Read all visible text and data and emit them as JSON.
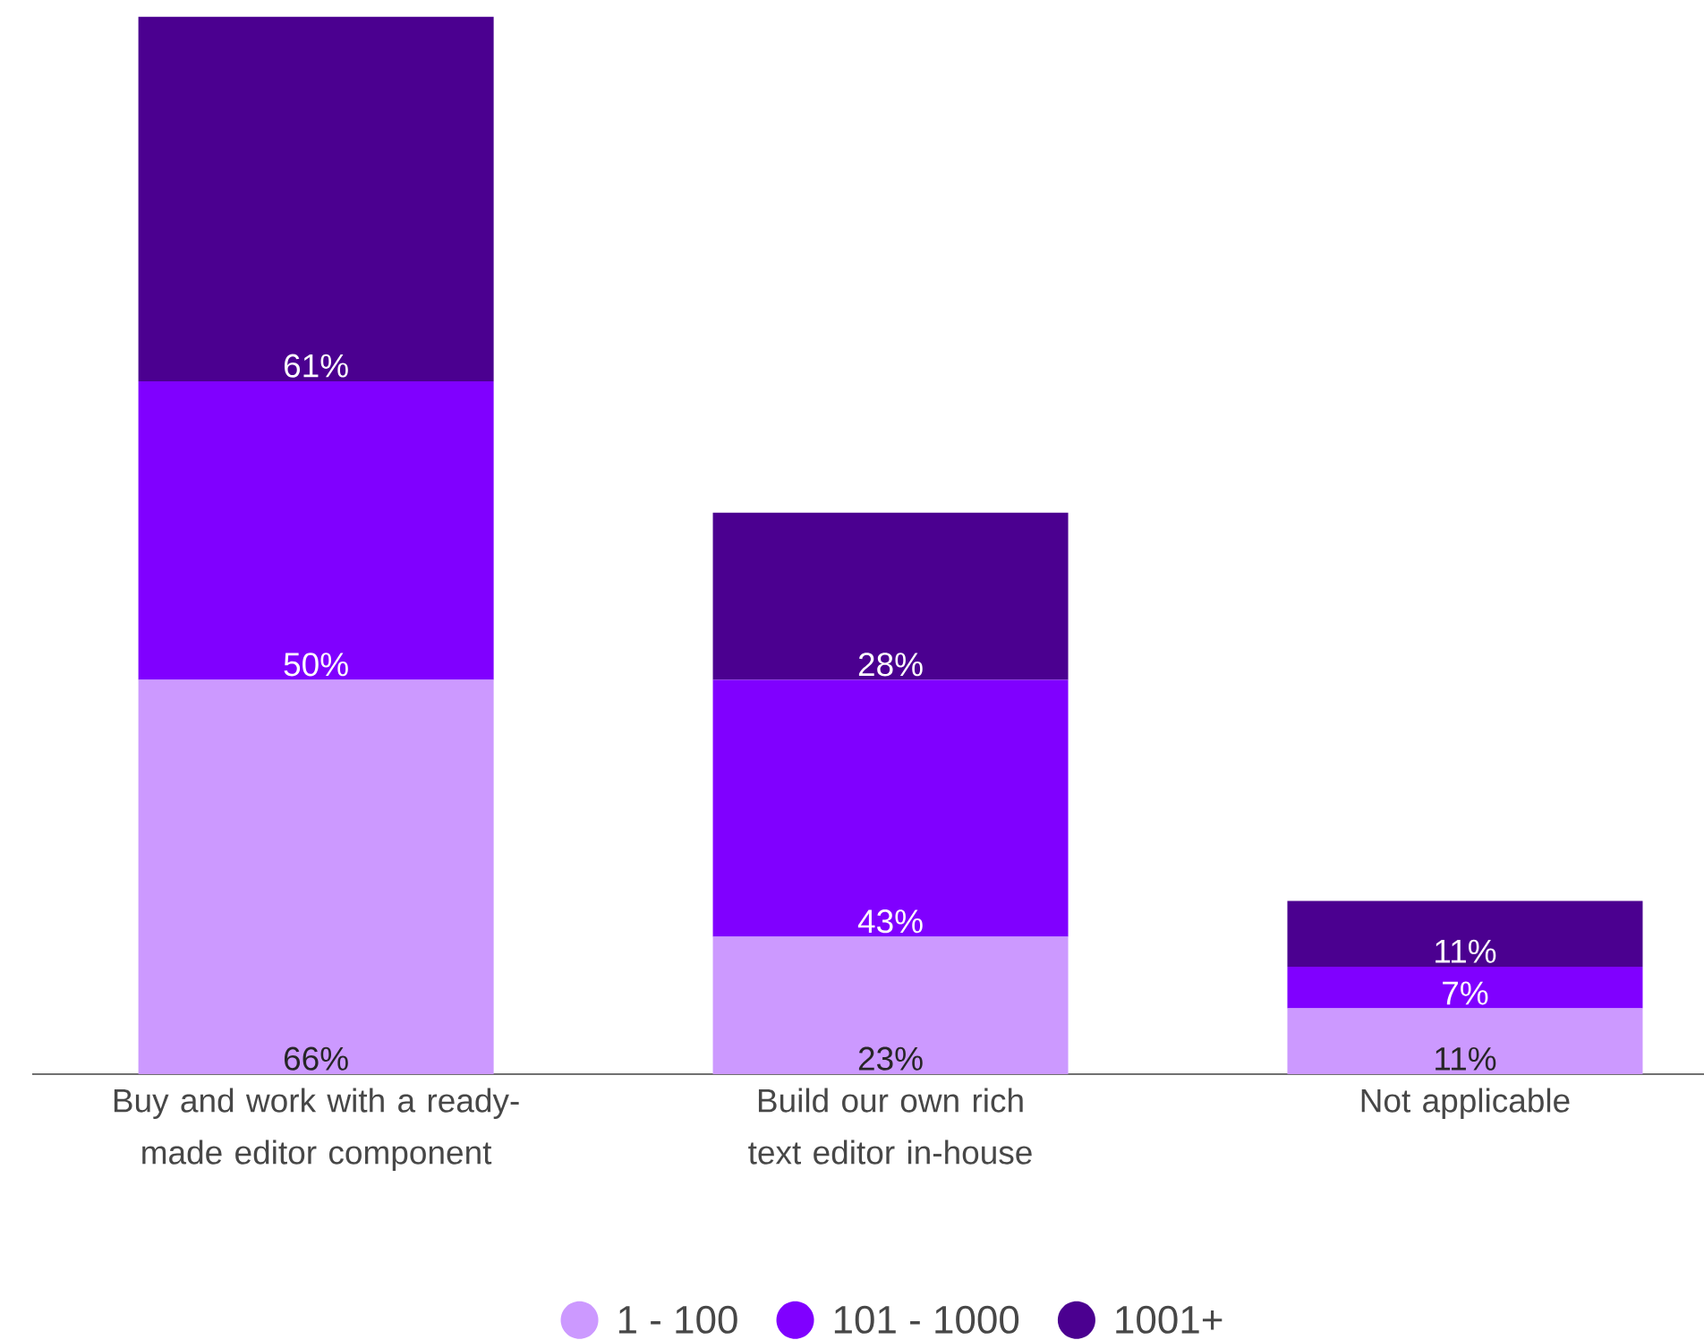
{
  "chart_data": {
    "type": "bar",
    "stacked": true,
    "legend": "bottom",
    "categories": [
      "Buy and work with a ready-made editor component",
      "Build our own rich text editor in-house",
      "Not applicable"
    ],
    "series": [
      {
        "name": "1 - 100",
        "color": "#cc99ff",
        "values": [
          66,
          23,
          11
        ],
        "value_labels": [
          "66%",
          "23%",
          "11%"
        ]
      },
      {
        "name": "101 - 1000",
        "color": "#8000ff",
        "values": [
          50,
          43,
          7
        ],
        "value_labels": [
          "50%",
          "43%",
          "7%"
        ]
      },
      {
        "name": "1001+",
        "color": "#4b0090",
        "values": [
          61,
          28,
          11
        ],
        "value_labels": [
          "61%",
          "28%",
          "11%"
        ]
      }
    ]
  }
}
